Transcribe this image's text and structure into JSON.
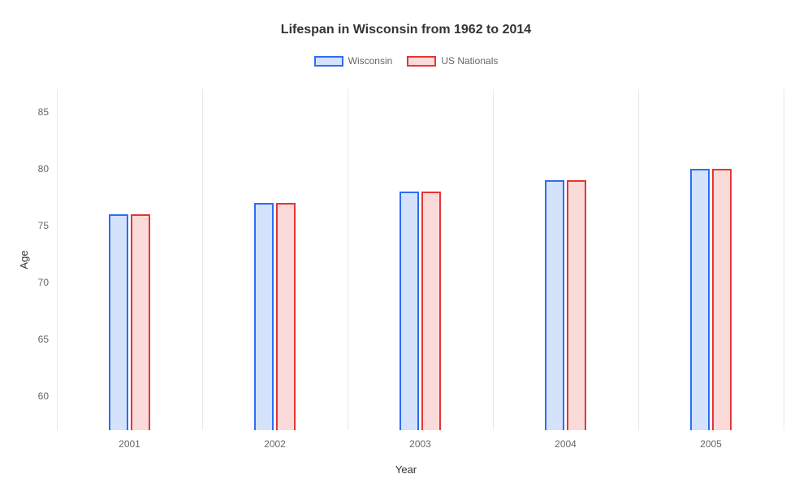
{
  "chart": {
    "type": "bar",
    "title": "Lifespan in Wisconsin from 1962 to 2014",
    "title_fontsize": 16,
    "title_color": "#333333",
    "background_color": "#ffffff",
    "grid_color": "#e8e8e8",
    "categories": [
      "2001",
      "2002",
      "2003",
      "2004",
      "2005"
    ],
    "series": [
      {
        "name": "Wisconsin",
        "values": [
          76,
          77,
          78,
          79,
          80
        ],
        "fill_color": "#d4e2fb",
        "border_color": "#2d6df6"
      },
      {
        "name": "US Nationals",
        "values": [
          76,
          77,
          78,
          79,
          80
        ],
        "fill_color": "#fbdada",
        "border_color": "#e63535"
      }
    ],
    "x_axis": {
      "title": "Year",
      "label_fontsize": 12,
      "label_color": "#666666"
    },
    "y_axis": {
      "title": "Age",
      "min": 57,
      "max": 87,
      "ticks": [
        60,
        65,
        70,
        75,
        80,
        85
      ],
      "label_fontsize": 12,
      "label_color": "#666666"
    },
    "legend": {
      "position": "top",
      "swatch_border_width": 2
    },
    "bar_width_ratio": 0.13,
    "bar_group_gap_ratio": 0.02
  }
}
